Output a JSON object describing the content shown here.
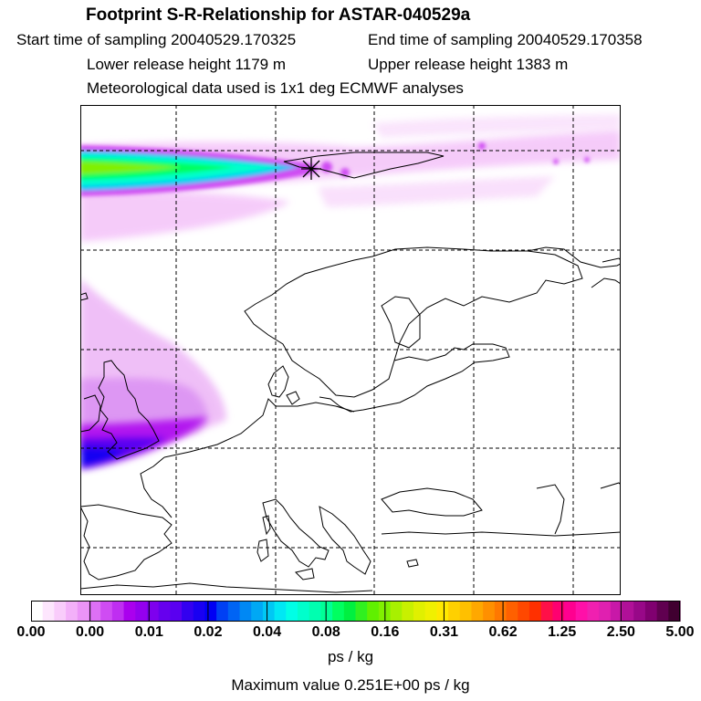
{
  "header": {
    "title": "Footprint S-R-Relationship for ASTAR-040529a",
    "start_time": "Start time of sampling 20040529.170325",
    "end_time": "End time of sampling 20040529.170358",
    "lower_height": "Lower release height 1179 m",
    "upper_height": "Upper release height 1383 m",
    "met_data": "Meteorological data used is 1x1 deg ECMWF analyses"
  },
  "map": {
    "release_marker_icon": "asterisk-marker-icon"
  },
  "colorbar": {
    "labels": [
      "0.00",
      "0.00",
      "0.01",
      "0.02",
      "0.04",
      "0.08",
      "0.16",
      "0.31",
      "0.62",
      "1.25",
      "2.50",
      "5.00"
    ],
    "colors": [
      "#ffffff",
      "#fde6fd",
      "#f9ccfb",
      "#f3b0f9",
      "#eb94f7",
      "#dd70f5",
      "#cf4cf3",
      "#bf2ef1",
      "#aa00ee",
      "#9400ee",
      "#7e00ee",
      "#6600ee",
      "#5a00f0",
      "#3300f0",
      "#1900f2",
      "#0000f4",
      "#0040f4",
      "#0064f4",
      "#0088f4",
      "#00a8f4",
      "#00c8f4",
      "#00e8f4",
      "#00ffe6",
      "#00ffcc",
      "#00ffb0",
      "#00ff96",
      "#00ff60",
      "#00f040",
      "#30f020",
      "#60f000",
      "#80f000",
      "#a8f000",
      "#c8f000",
      "#e0f000",
      "#f0f000",
      "#ffe800",
      "#ffd000",
      "#ffc000",
      "#ffa800",
      "#ff9000",
      "#ff7800",
      "#ff6000",
      "#ff4800",
      "#ff3000",
      "#ff1048",
      "#ff0070",
      "#ff0090",
      "#ff10a8",
      "#f020b0",
      "#e020b0",
      "#c818a8",
      "#b01098",
      "#980888",
      "#800070",
      "#600050",
      "#400030"
    ],
    "units": "ps / kg",
    "max_value": "Maximum value  0.251E+00 ps / kg"
  }
}
